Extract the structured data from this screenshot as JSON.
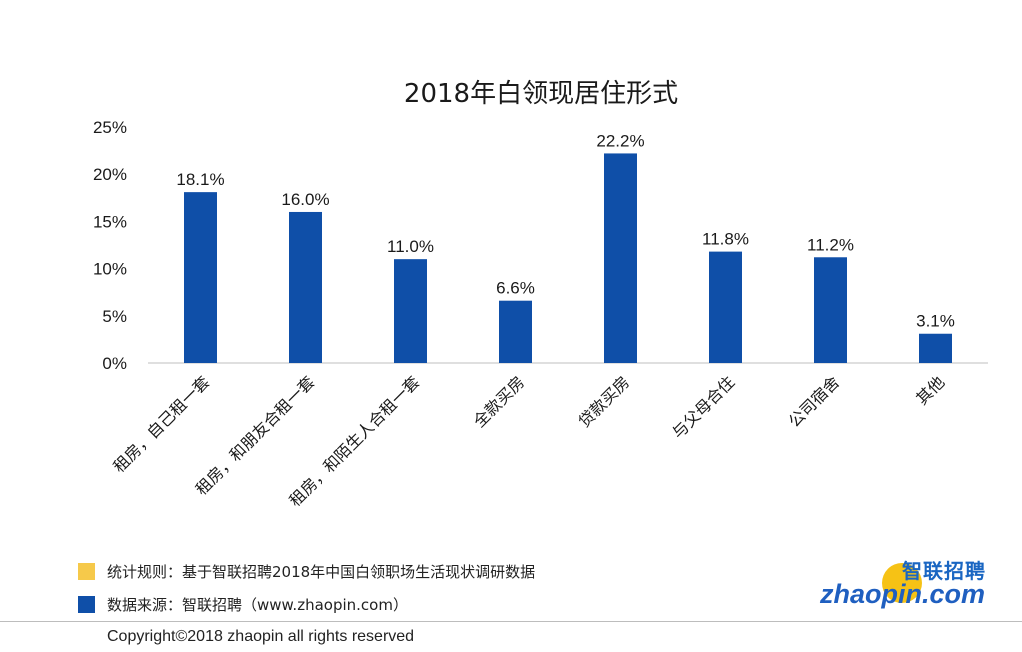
{
  "chart_data": {
    "type": "bar",
    "title": "2018年白领现居住形式",
    "categories": [
      "租房，自己租一套",
      "租房，和朋友合租一套",
      "租房，和陌生人合租一套",
      "全款买房",
      "贷款买房",
      "与父母合住",
      "公司宿舍",
      "其他"
    ],
    "values": [
      18.1,
      16.0,
      11.0,
      6.6,
      22.2,
      11.8,
      11.2,
      3.1
    ],
    "value_labels": [
      "18.1%",
      "16.0%",
      "11.0%",
      "6.6%",
      "22.2%",
      "11.8%",
      "11.2%",
      "3.1%"
    ],
    "yticks": [
      0,
      5,
      10,
      15,
      20,
      25
    ],
    "ytick_labels": [
      "0%",
      "5%",
      "10%",
      "15%",
      "20%",
      "25%"
    ],
    "ylim": [
      0,
      25
    ],
    "xlabel": "",
    "ylabel": "",
    "grid": false,
    "bar_color": "#0f4fa8"
  },
  "footer": {
    "rule_text": "统计规则：基于智联招聘2018年中国白领职场生活现状调研数据",
    "source_text": "数据来源：智联招聘（www.zhaopin.com）",
    "rule_swatch_color": "#f6c94a",
    "source_swatch_color": "#0f4fa8",
    "copyright": "Copyright©2018 zhaopin all rights reserved"
  },
  "logo": {
    "cn_text": "智联招聘",
    "en_text": "zhaopin.com"
  }
}
